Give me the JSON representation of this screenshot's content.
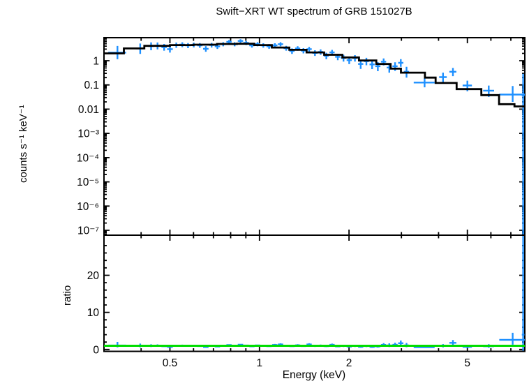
{
  "title": "Swift−XRT WT spectrum of GRB 151027B",
  "colors": {
    "data_blue": "#1E90FF",
    "model_black": "#000000",
    "unity_green": "#00DD00",
    "frame": "#000000",
    "background": "#ffffff"
  },
  "chart_data": [
    {
      "type": "scatter",
      "panel": "spectrum",
      "title": "Swift−XRT WT spectrum of GRB 151027B",
      "xlabel": "Energy (keV)",
      "ylabel": "counts s⁻¹ keV⁻¹",
      "xscale": "log",
      "yscale": "log",
      "xlim": [
        0.3,
        7.8
      ],
      "ylim": [
        6.3e-08,
        8.9
      ],
      "xticks": [
        {
          "v": 0.5,
          "label": "0.5"
        },
        {
          "v": 1,
          "label": "1"
        },
        {
          "v": 2,
          "label": "2"
        },
        {
          "v": 5,
          "label": "5"
        }
      ],
      "xticks_minor": [
        0.4,
        0.6,
        0.7,
        0.8,
        0.9,
        3,
        4,
        6,
        7
      ],
      "yticks": [
        {
          "v": 1,
          "label": "1"
        },
        {
          "v": 0.1,
          "label": "0.1"
        },
        {
          "v": 0.01,
          "label": "0.01"
        },
        {
          "v": 0.001,
          "label": "10⁻³"
        },
        {
          "v": 0.0001,
          "label": "10⁻⁴"
        },
        {
          "v": 1e-05,
          "label": "10⁻⁵"
        },
        {
          "v": 1e-06,
          "label": "10⁻⁶"
        },
        {
          "v": 1e-07,
          "label": "10⁻⁷"
        }
      ],
      "model_steps": [
        [
          0.3,
          0.35,
          2.0
        ],
        [
          0.35,
          0.41,
          3.2
        ],
        [
          0.41,
          0.5,
          4.1
        ],
        [
          0.5,
          0.6,
          4.4
        ],
        [
          0.6,
          0.72,
          4.6
        ],
        [
          0.72,
          0.84,
          4.9
        ],
        [
          0.84,
          0.96,
          5.0
        ],
        [
          0.96,
          1.1,
          4.4
        ],
        [
          1.1,
          1.26,
          3.5
        ],
        [
          1.26,
          1.44,
          2.8
        ],
        [
          1.44,
          1.65,
          2.2
        ],
        [
          1.65,
          1.9,
          1.75
        ],
        [
          1.9,
          2.16,
          1.36
        ],
        [
          2.16,
          2.47,
          1.02
        ],
        [
          2.47,
          2.76,
          0.73
        ],
        [
          2.76,
          2.99,
          0.47
        ],
        [
          2.99,
          3.6,
          0.32
        ],
        [
          3.6,
          3.91,
          0.2
        ],
        [
          3.91,
          4.6,
          0.12
        ],
        [
          4.6,
          5.57,
          0.067
        ],
        [
          5.57,
          6.39,
          0.038
        ],
        [
          6.39,
          7.2,
          0.016
        ],
        [
          7.2,
          7.8,
          0.013
        ]
      ],
      "points": [
        [
          0.333,
          0.023,
          2.15,
          1.0,
          1.9
        ],
        [
          0.397,
          0.013,
          3.2,
          1.3,
          1.9
        ],
        [
          0.432,
          0.01,
          4.0,
          1.3,
          1.7
        ],
        [
          0.454,
          0.01,
          4.15,
          1.2,
          1.5
        ],
        [
          0.478,
          0.01,
          3.6,
          1.0,
          1.3
        ],
        [
          0.5,
          0.011,
          3.0,
          0.85,
          1.05
        ],
        [
          0.525,
          0.011,
          4.4,
          1.0,
          1.2
        ],
        [
          0.55,
          0.012,
          4.6,
          1.0,
          1.15
        ],
        [
          0.575,
          0.012,
          4.25,
          0.95,
          1.1
        ],
        [
          0.601,
          0.013,
          4.5,
          0.95,
          1.05
        ],
        [
          0.63,
          0.013,
          4.3,
          0.9,
          1.0
        ],
        [
          0.66,
          0.014,
          3.1,
          0.75,
          0.9
        ],
        [
          0.69,
          0.014,
          4.4,
          0.9,
          1.0
        ],
        [
          0.722,
          0.015,
          3.9,
          0.85,
          0.95
        ],
        [
          0.755,
          0.016,
          4.8,
          0.9,
          1.0
        ],
        [
          0.79,
          0.016,
          6.0,
          1.0,
          1.1
        ],
        [
          0.825,
          0.017,
          4.8,
          0.9,
          1.0
        ],
        [
          0.863,
          0.018,
          6.5,
          1.05,
          1.15
        ],
        [
          0.902,
          0.019,
          5.4,
          0.95,
          1.05
        ],
        [
          0.943,
          0.019,
          4.3,
          0.85,
          0.95
        ],
        [
          0.985,
          0.02,
          4.8,
          0.9,
          1.0
        ],
        [
          1.03,
          0.021,
          4.3,
          0.85,
          0.95
        ],
        [
          1.077,
          0.022,
          3.9,
          0.8,
          0.9
        ],
        [
          1.126,
          0.023,
          4.3,
          0.85,
          0.95
        ],
        [
          1.177,
          0.024,
          4.8,
          0.9,
          1.0
        ],
        [
          1.23,
          0.025,
          3.3,
          0.7,
          0.8
        ],
        [
          1.286,
          0.026,
          2.5,
          0.6,
          0.7
        ],
        [
          1.344,
          0.027,
          3.2,
          0.65,
          0.75
        ],
        [
          1.405,
          0.028,
          2.6,
          0.6,
          0.7
        ],
        [
          1.469,
          0.03,
          3.0,
          0.65,
          0.72
        ],
        [
          1.536,
          0.031,
          2.1,
          0.52,
          0.6
        ],
        [
          1.605,
          0.032,
          2.3,
          0.55,
          0.62
        ],
        [
          1.678,
          0.034,
          1.6,
          0.45,
          0.52
        ],
        [
          1.754,
          0.035,
          2.2,
          0.5,
          0.58
        ],
        [
          1.833,
          0.037,
          1.45,
          0.4,
          0.47
        ],
        [
          1.916,
          0.038,
          1.3,
          0.38,
          0.44
        ],
        [
          2.003,
          0.04,
          1.05,
          0.33,
          0.4
        ],
        [
          2.094,
          0.042,
          1.28,
          0.36,
          0.42
        ],
        [
          2.189,
          0.044,
          0.73,
          0.27,
          0.33
        ],
        [
          2.288,
          0.046,
          0.95,
          0.3,
          0.36
        ],
        [
          2.392,
          0.048,
          0.7,
          0.25,
          0.31
        ],
        [
          2.5,
          0.05,
          0.59,
          0.22,
          0.28
        ],
        [
          2.614,
          0.052,
          0.91,
          0.27,
          0.33
        ],
        [
          2.732,
          0.055,
          0.52,
          0.2,
          0.26
        ],
        [
          2.856,
          0.057,
          0.59,
          0.21,
          0.27
        ],
        [
          2.986,
          0.06,
          0.82,
          0.26,
          0.34
        ],
        [
          3.121,
          0.062,
          0.35,
          0.15,
          0.21
        ],
        [
          3.59,
          0.29,
          0.125,
          0.045,
          0.06
        ],
        [
          4.14,
          0.12,
          0.21,
          0.08,
          0.11
        ],
        [
          4.47,
          0.12,
          0.35,
          0.12,
          0.15
        ],
        [
          5.0,
          0.18,
          0.095,
          0.04,
          0.055
        ],
        [
          5.9,
          0.25,
          0.058,
          0.026,
          0.036
        ],
        [
          7.1,
          0.7,
          0.04,
          0.02,
          0.05
        ],
        [
          7.7,
          0.08,
          0.037,
          0.037,
          0.25
        ]
      ],
      "points_format": [
        "energy_keV",
        "energy_halfwidth_keV",
        "rate",
        "err_minus",
        "err_plus"
      ]
    },
    {
      "type": "scatter",
      "panel": "ratio",
      "xlabel": "Energy (keV)",
      "ylabel": "ratio",
      "xscale": "log",
      "yscale": "linear",
      "xlim": [
        0.3,
        7.8
      ],
      "ylim": [
        -0.5,
        30.8
      ],
      "yticks": [
        {
          "v": 0,
          "label": "0"
        },
        {
          "v": 10,
          "label": "10"
        },
        {
          "v": 20,
          "label": "20"
        }
      ],
      "yticks_minor": [
        2,
        4,
        6,
        8,
        12,
        14,
        16,
        18,
        22,
        24,
        26,
        28
      ],
      "reference_line": 1,
      "points": [
        [
          0.333,
          0.023,
          1.08,
          0.5,
          0.95
        ],
        [
          0.397,
          0.013,
          1.0,
          0.41,
          0.59
        ],
        [
          0.432,
          0.01,
          0.98,
          0.32,
          0.41
        ],
        [
          0.454,
          0.01,
          1.01,
          0.29,
          0.37
        ],
        [
          0.478,
          0.01,
          0.88,
          0.24,
          0.32
        ],
        [
          0.5,
          0.011,
          0.68,
          0.19,
          0.24
        ],
        [
          0.525,
          0.011,
          1.0,
          0.23,
          0.27
        ],
        [
          0.55,
          0.012,
          1.05,
          0.23,
          0.26
        ],
        [
          0.575,
          0.012,
          0.97,
          0.22,
          0.25
        ],
        [
          0.601,
          0.013,
          0.98,
          0.21,
          0.23
        ],
        [
          0.63,
          0.013,
          0.93,
          0.2,
          0.22
        ],
        [
          0.66,
          0.014,
          0.67,
          0.16,
          0.2
        ],
        [
          0.69,
          0.014,
          0.96,
          0.2,
          0.22
        ],
        [
          0.722,
          0.015,
          0.8,
          0.17,
          0.19
        ],
        [
          0.755,
          0.016,
          0.98,
          0.18,
          0.2
        ],
        [
          0.79,
          0.016,
          1.22,
          0.2,
          0.22
        ],
        [
          0.825,
          0.017,
          0.98,
          0.18,
          0.2
        ],
        [
          0.863,
          0.018,
          1.3,
          0.21,
          0.23
        ],
        [
          0.902,
          0.019,
          1.08,
          0.19,
          0.21
        ],
        [
          0.943,
          0.019,
          0.86,
          0.17,
          0.19
        ],
        [
          0.985,
          0.02,
          1.09,
          0.2,
          0.23
        ],
        [
          1.03,
          0.021,
          0.98,
          0.19,
          0.22
        ],
        [
          1.077,
          0.022,
          0.89,
          0.18,
          0.2
        ],
        [
          1.126,
          0.023,
          1.23,
          0.24,
          0.27
        ],
        [
          1.177,
          0.024,
          1.37,
          0.26,
          0.29
        ],
        [
          1.23,
          0.025,
          0.94,
          0.2,
          0.23
        ],
        [
          1.286,
          0.026,
          0.89,
          0.21,
          0.25
        ],
        [
          1.344,
          0.027,
          1.14,
          0.23,
          0.27
        ],
        [
          1.405,
          0.028,
          0.93,
          0.21,
          0.25
        ],
        [
          1.469,
          0.03,
          1.36,
          0.3,
          0.33
        ],
        [
          1.536,
          0.031,
          0.95,
          0.24,
          0.27
        ],
        [
          1.605,
          0.032,
          1.05,
          0.25,
          0.28
        ],
        [
          1.678,
          0.034,
          0.91,
          0.26,
          0.3
        ],
        [
          1.754,
          0.035,
          1.26,
          0.29,
          0.33
        ],
        [
          1.833,
          0.037,
          0.83,
          0.23,
          0.27
        ],
        [
          1.916,
          0.038,
          0.96,
          0.28,
          0.32
        ],
        [
          2.003,
          0.04,
          0.77,
          0.24,
          0.29
        ],
        [
          2.094,
          0.042,
          0.94,
          0.27,
          0.31
        ],
        [
          2.189,
          0.044,
          0.72,
          0.26,
          0.32
        ],
        [
          2.288,
          0.046,
          0.93,
          0.29,
          0.35
        ],
        [
          2.392,
          0.048,
          0.69,
          0.25,
          0.31
        ],
        [
          2.5,
          0.05,
          0.81,
          0.3,
          0.38
        ],
        [
          2.614,
          0.052,
          1.25,
          0.37,
          0.45
        ],
        [
          2.732,
          0.055,
          1.11,
          0.43,
          0.55
        ],
        [
          2.856,
          0.057,
          1.26,
          0.45,
          0.57
        ],
        [
          2.986,
          0.06,
          1.7,
          0.54,
          0.71
        ],
        [
          3.121,
          0.062,
          1.09,
          0.47,
          0.66
        ],
        [
          3.59,
          0.29,
          0.63,
          0.23,
          0.3
        ],
        [
          4.14,
          0.12,
          0.95,
          0.36,
          0.5
        ],
        [
          4.47,
          0.12,
          1.8,
          0.62,
          0.77
        ],
        [
          5.0,
          0.18,
          0.7,
          0.3,
          0.41
        ],
        [
          5.9,
          0.25,
          0.88,
          0.39,
          0.55
        ],
        [
          7.1,
          0.7,
          2.6,
          1.3,
          1.9
        ],
        [
          7.7,
          0.08,
          4.0,
          6.0,
          27.0
        ]
      ],
      "points_format": [
        "energy_keV",
        "energy_halfwidth_keV",
        "ratio",
        "err_minus",
        "err_plus"
      ]
    }
  ]
}
